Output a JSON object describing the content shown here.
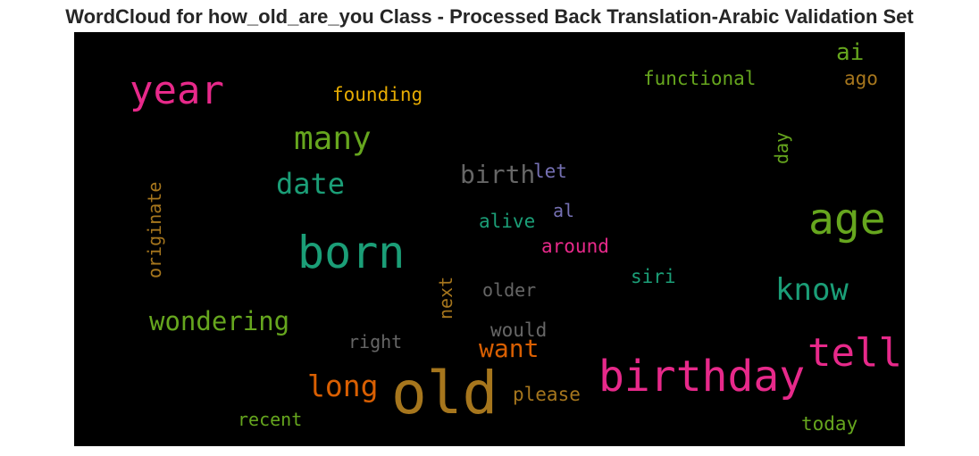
{
  "title": "WordCloud for how_old_are_you Class - Processed Back Translation-Arabic Validation Set",
  "words": [
    {
      "id": "year",
      "text": "year",
      "color": "#e7298a"
    },
    {
      "id": "founding",
      "text": "founding",
      "color": "#e6ab02"
    },
    {
      "id": "functional",
      "text": "functional",
      "color": "#66a61e"
    },
    {
      "id": "ai",
      "text": "ai",
      "color": "#66a61e"
    },
    {
      "id": "ago",
      "text": "ago",
      "color": "#a6761d"
    },
    {
      "id": "many",
      "text": "many",
      "color": "#66a61e"
    },
    {
      "id": "day",
      "text": "day",
      "color": "#66a61e"
    },
    {
      "id": "date",
      "text": "date",
      "color": "#1b9e77"
    },
    {
      "id": "birth",
      "text": "birth",
      "color": "#666666"
    },
    {
      "id": "let",
      "text": "let",
      "color": "#7570b3"
    },
    {
      "id": "originate",
      "text": "originate",
      "color": "#a6761d"
    },
    {
      "id": "age",
      "text": "age",
      "color": "#66a61e"
    },
    {
      "id": "al",
      "text": "al",
      "color": "#7570b3"
    },
    {
      "id": "alive",
      "text": "alive",
      "color": "#1b9e77"
    },
    {
      "id": "born",
      "text": "born",
      "color": "#1b9e77"
    },
    {
      "id": "around",
      "text": "around",
      "color": "#e7298a"
    },
    {
      "id": "siri",
      "text": "siri",
      "color": "#1b9e77"
    },
    {
      "id": "next",
      "text": "next",
      "color": "#a6761d"
    },
    {
      "id": "older",
      "text": "older",
      "color": "#666666"
    },
    {
      "id": "know",
      "text": "know",
      "color": "#1b9e77"
    },
    {
      "id": "wondering",
      "text": "wondering",
      "color": "#66a61e"
    },
    {
      "id": "would",
      "text": "would",
      "color": "#666666"
    },
    {
      "id": "right",
      "text": "right",
      "color": "#666666"
    },
    {
      "id": "want",
      "text": "want",
      "color": "#d95f02"
    },
    {
      "id": "tell",
      "text": "tell",
      "color": "#e7298a"
    },
    {
      "id": "birthday",
      "text": "birthday",
      "color": "#e7298a"
    },
    {
      "id": "long",
      "text": "long",
      "color": "#d95f02"
    },
    {
      "id": "old",
      "text": "old",
      "color": "#a6761d"
    },
    {
      "id": "please",
      "text": "please",
      "color": "#a6761d"
    },
    {
      "id": "recent",
      "text": "recent",
      "color": "#66a61e"
    },
    {
      "id": "today",
      "text": "today",
      "color": "#66a61e"
    }
  ]
}
